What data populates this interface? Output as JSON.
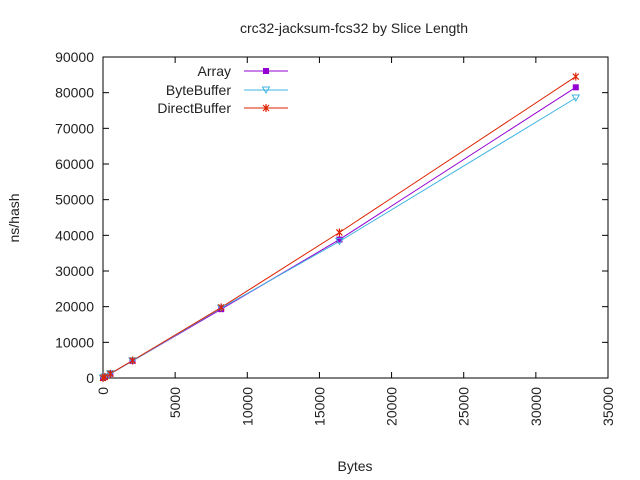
{
  "chart_data": {
    "type": "line",
    "title": "crc32-jacksum-fcs32 by Slice Length",
    "xlabel": "Bytes",
    "ylabel": "ns/hash",
    "xlim": [
      0,
      35000
    ],
    "ylim": [
      0,
      90000
    ],
    "xticks": [
      "0",
      "5000",
      "10000",
      "15000",
      "20000",
      "25000",
      "30000",
      "35000"
    ],
    "yticks": [
      "0",
      "10000",
      "20000",
      "30000",
      "40000",
      "50000",
      "60000",
      "70000",
      "80000",
      "90000"
    ],
    "grid": false,
    "legend_position": "top-left",
    "series": [
      {
        "name": "Array",
        "color": "#9400d3",
        "marker": "square",
        "x": [
          0,
          128,
          512,
          2048,
          8192,
          16384,
          32768
        ],
        "y": [
          0,
          300,
          1200,
          4800,
          19300,
          38800,
          81500
        ]
      },
      {
        "name": "ByteBuffer",
        "color": "#40b4e0",
        "marker": "triangle-down",
        "x": [
          0,
          128,
          512,
          2048,
          8192,
          16384,
          32768
        ],
        "y": [
          0,
          300,
          1200,
          4800,
          19600,
          38300,
          78500
        ]
      },
      {
        "name": "DirectBuffer",
        "color": "#dd2200",
        "marker": "star",
        "x": [
          0,
          128,
          512,
          2048,
          8192,
          16384,
          32768
        ],
        "y": [
          0,
          300,
          1200,
          4900,
          19800,
          40800,
          84500
        ]
      }
    ]
  }
}
